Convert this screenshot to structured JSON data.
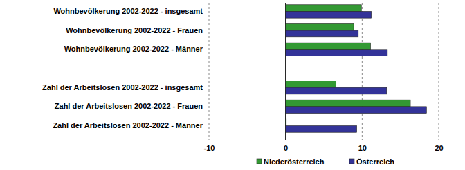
{
  "chart_data": {
    "type": "bar",
    "orientation": "horizontal",
    "categories": [
      "Wohnbevölkerung 2002-2022 - insgesamt",
      "Wohnbevölkerung 2002-2022 - Frauen",
      "Wohnbevölkerung 2002-2022 - Männer",
      null,
      "Zahl der Arbeitslosen 2002-2022 - insgesamt",
      "Zahl der Arbeitslosen 2002-2022 - Frauen",
      "Zahl der Arbeitslosen 2002-2022 - Männer"
    ],
    "series": [
      {
        "name": "Niederösterreich",
        "color": "#339933",
        "values": [
          9.9,
          8.9,
          11.1,
          null,
          6.6,
          16.3,
          0.1
        ]
      },
      {
        "name": "Österreich",
        "color": "#333399",
        "values": [
          11.2,
          9.5,
          13.3,
          null,
          13.2,
          18.4,
          9.3
        ]
      }
    ],
    "xlim": [
      -10,
      20
    ],
    "xticks": [
      -10,
      0,
      10,
      20
    ],
    "grid": true,
    "legend": "bottom",
    "data_labels": false
  }
}
